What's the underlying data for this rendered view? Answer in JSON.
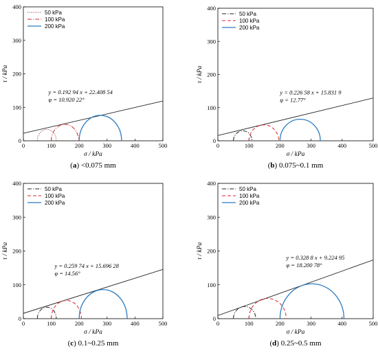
{
  "chart_data": [
    {
      "type": "line",
      "panel_letter": "a",
      "caption": "<0.075 mm",
      "xlabel": "σ / kPa",
      "ylabel": "τ / kPa",
      "xlim": [
        0,
        500
      ],
      "ylim": [
        0,
        400
      ],
      "xticks": [
        0,
        100,
        200,
        300,
        400,
        500
      ],
      "yticks": [
        0,
        100,
        200,
        300,
        400
      ],
      "legend_position": "top-left",
      "series": [
        {
          "name": "50 kPa",
          "style": "dotted",
          "color": "#8b2e2e",
          "circle": {
            "sigma3": 50,
            "sigma1": 118
          }
        },
        {
          "name": "100 kPa",
          "style": "dashdot",
          "color": "#d8252d",
          "circle": {
            "sigma3": 100,
            "sigma1": 198
          }
        },
        {
          "name": "200 kPa",
          "style": "solid",
          "color": "#2a7ac0",
          "circle": {
            "sigma3": 200,
            "sigma1": 352
          }
        }
      ],
      "envelope": {
        "slope": 0.19294,
        "intercept": 22.40854
      },
      "annotations": [
        "y = 0.192 94 x + 22.408 54",
        "φ = 10.920 22°"
      ]
    },
    {
      "type": "line",
      "panel_letter": "b",
      "caption": "0.075~0.1 mm",
      "xlabel": "σ / kPa",
      "ylabel": "τ / kPa",
      "xlim": [
        0,
        500
      ],
      "ylim": [
        0,
        400
      ],
      "xticks": [
        0,
        100,
        200,
        300,
        400,
        500
      ],
      "yticks": [
        0,
        100,
        200,
        300,
        400
      ],
      "legend_position": "top-left",
      "series": [
        {
          "name": "50 kPa",
          "style": "dashdot",
          "color": "#222222",
          "circle": {
            "sigma3": 50,
            "sigma1": 110
          }
        },
        {
          "name": "100 kPa",
          "style": "dashed",
          "color": "#d8252d",
          "circle": {
            "sigma3": 100,
            "sigma1": 196
          }
        },
        {
          "name": "200 kPa",
          "style": "solid",
          "color": "#2a7ac0",
          "circle": {
            "sigma3": 200,
            "sigma1": 330
          }
        }
      ],
      "envelope": {
        "slope": 0.22658,
        "intercept": 15.8319
      },
      "annotations": [
        "y = 0.226 58 x + 15.831 9",
        "φ = 12.77°"
      ]
    },
    {
      "type": "line",
      "panel_letter": "c",
      "caption": "0.1~0.25 mm",
      "xlabel": "σ / kPa",
      "ylabel": "τ / kPa",
      "xlim": [
        0,
        500
      ],
      "ylim": [
        0,
        400
      ],
      "xticks": [
        0,
        100,
        200,
        300,
        400,
        500
      ],
      "yticks": [
        0,
        100,
        200,
        300,
        400
      ],
      "legend_position": "top-left",
      "series": [
        {
          "name": "50 kPa",
          "style": "dashdot",
          "color": "#222222",
          "circle": {
            "sigma3": 50,
            "sigma1": 118
          }
        },
        {
          "name": "100 kPa",
          "style": "dashed",
          "color": "#d8252d",
          "circle": {
            "sigma3": 100,
            "sigma1": 208
          }
        },
        {
          "name": "200 kPa",
          "style": "solid",
          "color": "#2a7ac0",
          "circle": {
            "sigma3": 200,
            "sigma1": 372
          }
        }
      ],
      "envelope": {
        "slope": 0.25974,
        "intercept": 15.69628
      },
      "annotations": [
        "y = 0.259 74 x + 15.696 28",
        "φ = 14.56°"
      ]
    },
    {
      "type": "line",
      "panel_letter": "d",
      "caption": "0.25~0.5 mm",
      "xlabel": "σ / kPa",
      "ylabel": "τ / kPa",
      "xlim": [
        0,
        500
      ],
      "ylim": [
        0,
        400
      ],
      "xticks": [
        0,
        100,
        200,
        300,
        400,
        500
      ],
      "yticks": [
        0,
        100,
        200,
        300,
        400
      ],
      "legend_position": "top-left",
      "series": [
        {
          "name": "50 kPa",
          "style": "dashdot",
          "color": "#222222",
          "circle": {
            "sigma3": 50,
            "sigma1": 122
          }
        },
        {
          "name": "100 kPa",
          "style": "dashed",
          "color": "#d8252d",
          "circle": {
            "sigma3": 100,
            "sigma1": 220
          }
        },
        {
          "name": "200 kPa",
          "style": "solid",
          "color": "#2a7ac0",
          "circle": {
            "sigma3": 200,
            "sigma1": 406
          }
        }
      ],
      "envelope": {
        "slope": 0.3288,
        "intercept": 9.22495
      },
      "annotations": [
        "y = 0.328 8 x + 9.224 95",
        "φ = 18.200 78°"
      ]
    }
  ]
}
